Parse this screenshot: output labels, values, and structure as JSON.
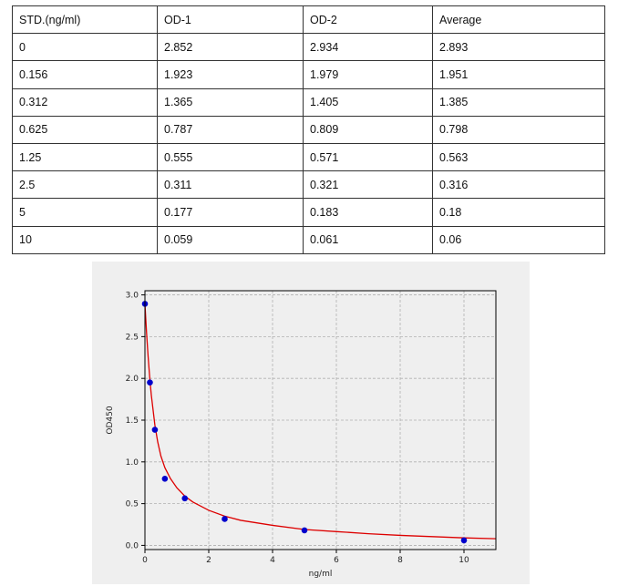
{
  "table": {
    "headers": [
      "STD.(ng/ml)",
      "OD-1",
      "OD-2",
      "Average"
    ],
    "rows": [
      [
        "0",
        "2.852",
        "2.934",
        "2.893"
      ],
      [
        "0.156",
        "1.923",
        "1.979",
        "1.951"
      ],
      [
        "0.312",
        "1.365",
        "1.405",
        "1.385"
      ],
      [
        "0.625",
        "0.787",
        "0.809",
        "0.798"
      ],
      [
        "1.25",
        "0.555",
        "0.571",
        "0.563"
      ],
      [
        "2.5",
        "0.311",
        "0.321",
        "0.316"
      ],
      [
        "5",
        "0.177",
        "0.183",
        "0.18"
      ],
      [
        "10",
        "0.059",
        "0.061",
        "0.06"
      ]
    ]
  },
  "chart_data": {
    "type": "scatter",
    "title": "",
    "xlabel": "ng/ml",
    "ylabel": "OD450",
    "xlim": [
      0,
      11
    ],
    "ylim": [
      -0.05,
      3.05
    ],
    "xticks": [
      0,
      2,
      4,
      6,
      8,
      10
    ],
    "xtick_labels": [
      "0",
      "2",
      "4",
      "6",
      "8",
      "10"
    ],
    "yticks": [
      0.0,
      0.5,
      1.0,
      1.5,
      2.0,
      2.5,
      3.0
    ],
    "ytick_labels": [
      "0.0",
      "0.5",
      "1.0",
      "1.5",
      "2.0",
      "2.5",
      "3.0"
    ],
    "grid": true,
    "points": {
      "x": [
        0,
        0.156,
        0.312,
        0.625,
        1.25,
        2.5,
        5,
        10
      ],
      "y": [
        2.893,
        1.951,
        1.385,
        0.798,
        0.563,
        0.316,
        0.18,
        0.06
      ],
      "color": "#0000cc"
    },
    "fit_curve": {
      "color": "#dd0000",
      "x": [
        0,
        0.05,
        0.1,
        0.156,
        0.2,
        0.312,
        0.4,
        0.5,
        0.625,
        0.8,
        1.0,
        1.25,
        1.5,
        2.0,
        2.5,
        3.0,
        4.0,
        5.0,
        6.0,
        7.0,
        8.0,
        9.0,
        10.0,
        11.0
      ],
      "y": [
        2.893,
        2.55,
        2.26,
        1.98,
        1.8,
        1.44,
        1.24,
        1.07,
        0.93,
        0.8,
        0.69,
        0.59,
        0.52,
        0.42,
        0.35,
        0.3,
        0.24,
        0.19,
        0.165,
        0.14,
        0.12,
        0.105,
        0.09,
        0.08
      ]
    }
  }
}
